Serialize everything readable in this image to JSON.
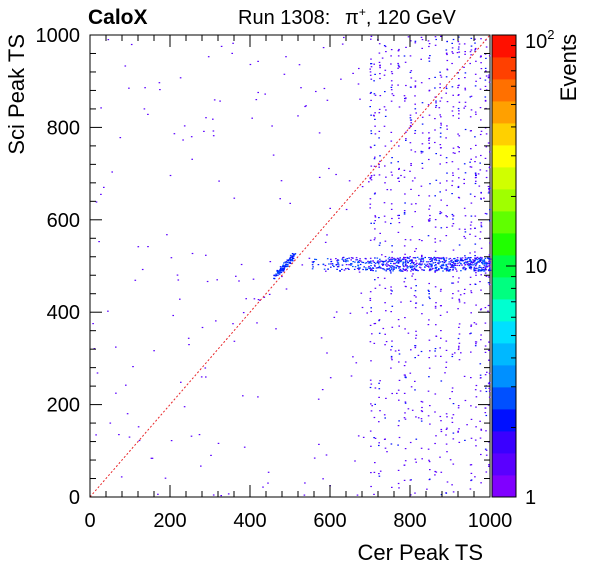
{
  "chart_data": {
    "type": "heatmap",
    "label": "CaloX",
    "run_text": "Run 1308:",
    "particle": "π⁺, 120 GeV",
    "particle_base": "π",
    "particle_sup": "+",
    "particle_rest": ", 120 GeV",
    "xlabel": "Cer Peak TS",
    "ylabel": "Sci Peak TS",
    "zlabel": "Events",
    "xlim": [
      0,
      1000
    ],
    "ylim": [
      0,
      1000
    ],
    "zscale": "log",
    "zlim": [
      1,
      100
    ],
    "x_ticks": [
      "0",
      "200",
      "400",
      "600",
      "800",
      "1000"
    ],
    "y_ticks": [
      "0",
      "200",
      "400",
      "600",
      "800",
      "1000"
    ],
    "z_ticks": [
      "1",
      "10"
    ],
    "z_top_base": "10",
    "z_top_exp": "2",
    "diagonal_line": {
      "from": [
        0,
        0
      ],
      "to": [
        1000,
        1000
      ],
      "color": "#e8272a",
      "style": "dotted"
    },
    "features": {
      "cluster": {
        "x": [
          460,
          510
        ],
        "y": [
          478,
          525
        ],
        "note_free": true
      },
      "band": {
        "x": [
          540,
          1000
        ],
        "y": [
          490,
          520
        ]
      },
      "vertical_streaks_x": [
        700,
        710,
        722,
        736,
        752,
        770,
        786,
        800,
        812,
        828,
        846,
        862,
        875,
        890,
        905,
        920,
        935,
        950,
        962,
        975,
        988,
        996
      ],
      "scatter_background": {
        "x": [
          0,
          1000
        ],
        "y": [
          0,
          1000
        ]
      }
    },
    "colors": [
      "#8000ff",
      "#5a00ff",
      "#3a00ff",
      "#0010ff",
      "#0050ff",
      "#0090ff",
      "#00b8ff",
      "#00e0ff",
      "#00ffd0",
      "#00ff80",
      "#00ff40",
      "#20ff00",
      "#60ff00",
      "#a0ff00",
      "#d0ff00",
      "#ffff00",
      "#ffd000",
      "#ffa000",
      "#ff7000",
      "#ff4000",
      "#ff1000"
    ]
  }
}
